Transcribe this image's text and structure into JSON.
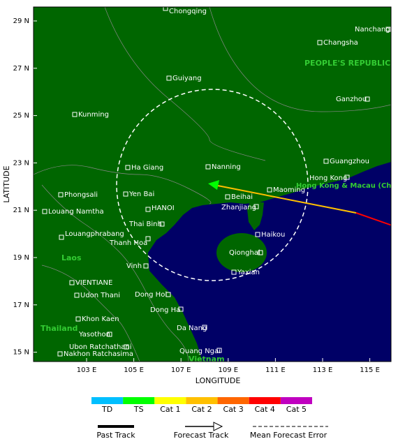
{
  "axes": {
    "x_label": "LONGITUDE",
    "y_label": "LATITUDE",
    "xticks": [
      {
        "value": 103,
        "label": "103 E"
      },
      {
        "value": 105,
        "label": "105 E"
      },
      {
        "value": 107,
        "label": "107 E"
      },
      {
        "value": 109,
        "label": "109 E"
      },
      {
        "value": 111,
        "label": "111 E"
      },
      {
        "value": 113,
        "label": "113 E"
      },
      {
        "value": 115,
        "label": "115 E"
      }
    ],
    "yticks": [
      {
        "value": 29,
        "label": "29 N"
      },
      {
        "value": 27,
        "label": "27 N"
      },
      {
        "value": 25,
        "label": "25 N"
      },
      {
        "value": 23,
        "label": "23 N"
      },
      {
        "value": 21,
        "label": "21 N"
      },
      {
        "value": 19,
        "label": "19 N"
      },
      {
        "value": 17,
        "label": "17 N"
      },
      {
        "value": 15,
        "label": "15 N"
      }
    ]
  },
  "cities": [
    "Chongqing",
    "Nanchang",
    "Changsha",
    "Guiyang",
    "Ganzhou",
    "Kunming",
    "Guangzhou",
    "Ha Giang",
    "Nanning",
    "Hong Kong",
    "Phongsali",
    "Yen Bai",
    "Maoming",
    "Beihai",
    "Louang Namtha",
    "HANOI",
    "Zhanjiang",
    "Thai Binh",
    "Louangphrabang",
    "Thanh Hoa",
    "Haikou",
    "Qionghai",
    "Vinh",
    "Yaxian",
    "VIENTIANE",
    "Udon Thani",
    "Dong Hoi",
    "Dong Ha",
    "Khon Kaen",
    "Da Nang",
    "Yasothon",
    "Ubon Ratchathani",
    "Quang Ngai",
    "Nakhon Ratchasima"
  ],
  "regions": [
    "PEOPLE'S REPUBLIC",
    "Hong Kong & Macau (China)",
    "Laos",
    "Thailand",
    "Vietnam"
  ],
  "legend": {
    "categories": [
      {
        "label": "TD",
        "color": "#00bfff"
      },
      {
        "label": "TS",
        "color": "#00ff00"
      },
      {
        "label": "Cat 1",
        "color": "#ffff00"
      },
      {
        "label": "Cat 2",
        "color": "#ffc000"
      },
      {
        "label": "Cat 3",
        "color": "#ff6600"
      },
      {
        "label": "Cat 4",
        "color": "#ff0000"
      },
      {
        "label": "Cat 5",
        "color": "#c000c0"
      }
    ],
    "tracks": [
      "Past Track",
      "Forecast Track",
      "Mean Forecast Error"
    ]
  }
}
